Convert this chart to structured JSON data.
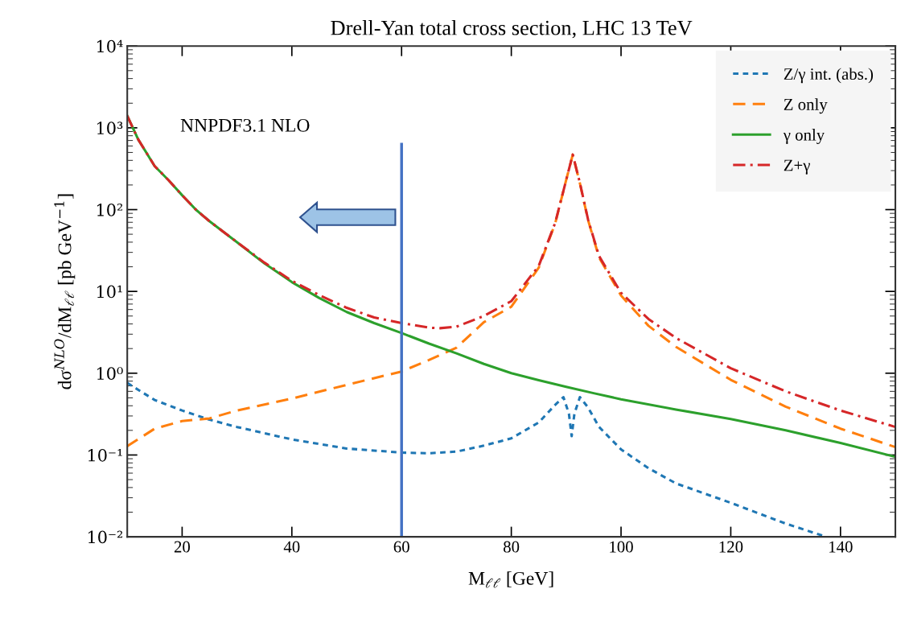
{
  "chart_data": {
    "type": "line",
    "title": "Drell-Yan total cross section, LHC 13 TeV",
    "xlabel": "M$_{ℓℓ}$ [GeV]",
    "ylabel": "dσ$^{NLO}$/dM$_{ℓℓ}$ [pb GeV$^{−1}$]",
    "log": "y",
    "grid": false,
    "legend": "top right",
    "xlim": [
      10,
      150
    ],
    "xticks": [
      20,
      40,
      60,
      80,
      100,
      120,
      140
    ],
    "ylim": [
      0.01,
      10000
    ],
    "yticks": [
      {
        "value": 0.01,
        "label": "10⁻²"
      },
      {
        "value": 0.1,
        "label": "10⁻¹"
      },
      {
        "value": 1,
        "label": "10⁰"
      },
      {
        "value": 10,
        "label": "10¹"
      },
      {
        "value": 100,
        "label": "10²"
      },
      {
        "value": 1000,
        "label": "10³"
      },
      {
        "value": 10000,
        "label": "10⁴"
      }
    ],
    "annotations": [
      "NNPDF3.1 NLO"
    ],
    "ref_lines": [
      {
        "axis": "x",
        "value": 60,
        "color": "#4472c4",
        "line_style": "solid"
      }
    ],
    "series": [
      {
        "name": "Z/γ int. (abs.)",
        "color": "#1f77b4",
        "line_style": "dotted",
        "x": [
          10,
          15,
          20,
          25,
          30,
          40,
          50,
          60,
          65,
          70,
          75,
          80,
          85,
          88,
          89.5,
          90.5,
          91,
          91.5,
          92.5,
          94,
          96,
          100,
          105,
          110,
          120,
          130,
          137
        ],
        "values": [
          0.76,
          0.47,
          0.35,
          0.27,
          0.22,
          0.155,
          0.12,
          0.107,
          0.105,
          0.11,
          0.13,
          0.16,
          0.25,
          0.41,
          0.51,
          0.32,
          0.17,
          0.32,
          0.51,
          0.38,
          0.22,
          0.117,
          0.069,
          0.045,
          0.026,
          0.0145,
          0.0102
        ]
      },
      {
        "name": "Z only",
        "color": "#ff7f0e",
        "line_style": "dashed",
        "x": [
          10,
          15,
          20,
          25,
          30,
          40,
          50,
          60,
          65,
          70,
          75,
          80,
          85,
          88,
          90,
          91.2,
          92.5,
          94,
          96,
          100,
          105,
          110,
          120,
          130,
          140,
          150
        ],
        "values": [
          0.128,
          0.21,
          0.26,
          0.28,
          0.35,
          0.49,
          0.72,
          1.05,
          1.45,
          2.05,
          4.2,
          6.5,
          19.5,
          68,
          230,
          470,
          210,
          74,
          26,
          8.9,
          3.8,
          2.1,
          0.83,
          0.39,
          0.21,
          0.125
        ]
      },
      {
        "name": "γ only",
        "color": "#2ca02c",
        "line_style": "solid",
        "x": [
          10,
          12,
          15,
          17.5,
          20,
          22.5,
          25,
          30,
          35,
          40,
          45,
          50,
          55,
          60,
          65,
          70,
          75,
          80,
          85,
          90,
          95,
          100,
          110,
          120,
          130,
          140,
          150
        ],
        "values": [
          1400,
          720,
          340,
          230,
          150,
          100,
          72,
          40,
          22,
          13,
          8.3,
          5.6,
          4.1,
          3.1,
          2.3,
          1.75,
          1.3,
          1.0,
          0.82,
          0.68,
          0.57,
          0.48,
          0.36,
          0.275,
          0.2,
          0.14,
          0.095
        ]
      },
      {
        "name": "Z+γ",
        "color": "#d62728",
        "line_style": "dashdot",
        "x": [
          10,
          12,
          15,
          17.5,
          20,
          22.5,
          25,
          30,
          35,
          40,
          45,
          50,
          55,
          60,
          65,
          67,
          70,
          75,
          80,
          85,
          88,
          90,
          91.2,
          92.5,
          94,
          96,
          100,
          105,
          110,
          120,
          130,
          140,
          150
        ],
        "values": [
          1400,
          720,
          340,
          230,
          150,
          100,
          72,
          40,
          22.5,
          13.5,
          9,
          6.3,
          4.8,
          4.1,
          3.6,
          3.55,
          3.7,
          5.0,
          7.6,
          20.5,
          69,
          230,
          470,
          212,
          75,
          27,
          9.6,
          4.6,
          2.7,
          1.15,
          0.6,
          0.35,
          0.22
        ]
      }
    ]
  }
}
